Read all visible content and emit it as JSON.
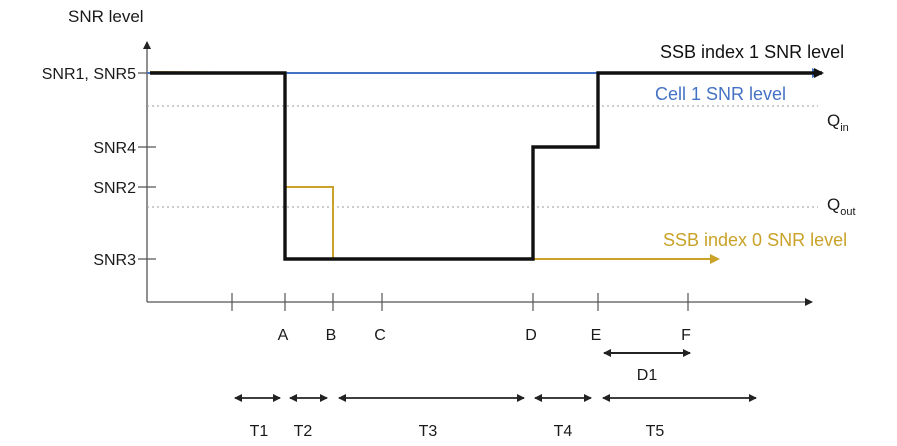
{
  "chart_data": {
    "type": "line",
    "ylabel": "SNR level",
    "y_ticks": [
      "SNR1, SNR5",
      "SNR4",
      "SNR2",
      "SNR3"
    ],
    "x_ticks": [
      "A",
      "B",
      "C",
      "D",
      "E",
      "F"
    ],
    "thresholds": [
      {
        "label": "Q",
        "sub": "in",
        "level": "between SNR1 and SNR4"
      },
      {
        "label": "Q",
        "sub": "out",
        "level": "between SNR2 and SNR3"
      }
    ],
    "series": [
      {
        "name": "SSB index 1 SNR level",
        "color": "#111111",
        "steps": [
          [
            "start",
            "SNR1"
          ],
          [
            "A",
            "SNR1"
          ],
          [
            "A",
            "SNR3"
          ],
          [
            "D",
            "SNR3"
          ],
          [
            "D",
            "SNR4"
          ],
          [
            "E",
            "SNR4"
          ],
          [
            "E",
            "SNR5"
          ],
          [
            "end",
            "SNR5"
          ]
        ]
      },
      {
        "name": "Cell 1 SNR level",
        "color": "#4472c4",
        "steps": [
          [
            "start",
            "SNR1"
          ],
          [
            "end",
            "SNR1"
          ]
        ]
      },
      {
        "name": "SSB index 0 SNR level",
        "color": "#c9a227",
        "steps": [
          [
            "start",
            "SNR1"
          ],
          [
            "A",
            "SNR1"
          ],
          [
            "A",
            "SNR2"
          ],
          [
            "B",
            "SNR2"
          ],
          [
            "B",
            "SNR3"
          ],
          [
            "end",
            "SNR3"
          ]
        ]
      }
    ],
    "durations": [
      {
        "label": "D1",
        "from": "E",
        "to": "F"
      }
    ],
    "periods": [
      "T1",
      "T2",
      "T3",
      "T4",
      "T5"
    ]
  }
}
